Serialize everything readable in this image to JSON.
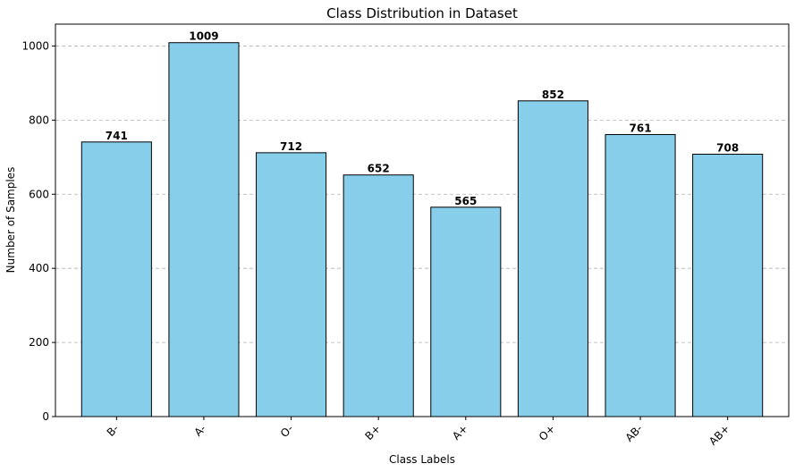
{
  "chart_data": {
    "type": "bar",
    "title": "Class Distribution in Dataset",
    "xlabel": "Class Labels",
    "ylabel": "Number of Samples",
    "categories": [
      "B-",
      "A-",
      "O-",
      "B+",
      "A+",
      "O+",
      "AB-",
      "AB+"
    ],
    "values": [
      741,
      1009,
      712,
      652,
      565,
      852,
      761,
      708
    ],
    "value_labels": [
      "741",
      "1009",
      "712",
      "652",
      "565",
      "852",
      "761",
      "708"
    ],
    "ylim": [
      0,
      1059
    ],
    "yticks": [
      0,
      200,
      400,
      600,
      800,
      1000
    ],
    "ytick_labels": [
      "0",
      "200",
      "400",
      "600",
      "800",
      "1000"
    ],
    "grid": "y-dashed",
    "bar_color": "#87ceeb",
    "bar_edge_color": "#000000",
    "xtick_rotation": -45
  }
}
